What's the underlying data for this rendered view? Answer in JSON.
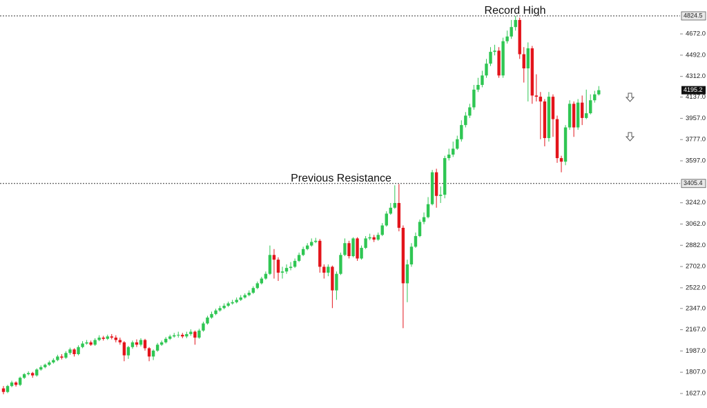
{
  "chart_data": {
    "type": "candlestick",
    "up_color": "#2fc653",
    "down_color": "#e3141b",
    "ylim": [
      1504,
      4959
    ],
    "yticks": [
      {
        "value": 1627,
        "label": "1627.0"
      },
      {
        "value": 1807,
        "label": "1807.0"
      },
      {
        "value": 1987,
        "label": "1987.0"
      },
      {
        "value": 2167,
        "label": "2167.0"
      },
      {
        "value": 2347,
        "label": "2347.0"
      },
      {
        "value": 2522,
        "label": "2522.0"
      },
      {
        "value": 2702,
        "label": "2702.0"
      },
      {
        "value": 2882,
        "label": "2882.0"
      },
      {
        "value": 3062,
        "label": "3062.0"
      },
      {
        "value": 3242,
        "label": "3242.0"
      },
      {
        "value": 3597,
        "label": "3597.0"
      },
      {
        "value": 3777,
        "label": "3777.0"
      },
      {
        "value": 3957,
        "label": "3957.0"
      },
      {
        "value": 4137,
        "label": "4137.0"
      },
      {
        "value": 4312,
        "label": "4312.0"
      },
      {
        "value": 4492,
        "label": "4492.0"
      },
      {
        "value": 4672,
        "label": "4672.0"
      }
    ],
    "hlines": [
      {
        "value": 4824.5,
        "text": "Record High"
      },
      {
        "value": 3405.4,
        "text": "Previous Resistance"
      }
    ],
    "open": [
      1670,
      1640,
      1690,
      1720,
      1700,
      1760,
      1790,
      1800,
      1780,
      1830,
      1850,
      1870,
      1890,
      1910,
      1940,
      1930,
      1970,
      2000,
      1960,
      2020,
      2050,
      2060,
      2040,
      2080,
      2100,
      2090,
      2110,
      2100,
      2080,
      2060,
      1950,
      2020,
      2060,
      2040,
      2080,
      2010,
      1940,
      1990,
      2040,
      2060,
      2090,
      2110,
      2120,
      2124,
      2110,
      2130,
      2150,
      2100,
      2160,
      2220,
      2270,
      2300,
      2330,
      2350,
      2370,
      2390,
      2400,
      2420,
      2440,
      2460,
      2480,
      2520,
      2560,
      2600,
      2640,
      2800,
      2760,
      2650,
      2660,
      2690,
      2700,
      2750,
      2800,
      2850,
      2880,
      2910,
      2920,
      2700,
      2650,
      2700,
      2500,
      2640,
      2800,
      2900,
      2790,
      2940,
      2770,
      2860,
      2940,
      2950,
      2930,
      2970,
      3050,
      3150,
      3200,
      3240,
      3030,
      2560,
      2720,
      2870,
      2960,
      3080,
      3120,
      3230,
      3500,
      3300,
      3310,
      3620,
      3650,
      3700,
      3780,
      3900,
      3980,
      4050,
      4200,
      4240,
      4320,
      4420,
      4520,
      4530,
      4320,
      4610,
      4650,
      4730,
      4790,
      4500,
      4380,
      4550,
      4150,
      4140,
      4100,
      3790,
      4140,
      3950,
      3620,
      3590,
      3880,
      4080,
      3880,
      4090,
      3960,
      4000,
      4110,
      4160
    ],
    "high": [
      1690,
      1700,
      1735,
      1730,
      1770,
      1800,
      1815,
      1810,
      1840,
      1865,
      1880,
      1905,
      1925,
      1955,
      1960,
      1985,
      2015,
      2010,
      2035,
      2070,
      2080,
      2075,
      2095,
      2120,
      2115,
      2125,
      2130,
      2120,
      2100,
      2070,
      2030,
      2075,
      2085,
      2095,
      2090,
      2020,
      2000,
      2055,
      2075,
      2105,
      2125,
      2140,
      2150,
      2140,
      2150,
      2170,
      2160,
      2175,
      2235,
      2285,
      2320,
      2345,
      2370,
      2390,
      2405,
      2420,
      2440,
      2460,
      2475,
      2500,
      2535,
      2575,
      2615,
      2660,
      2880,
      2850,
      2780,
      2700,
      2720,
      2740,
      2770,
      2820,
      2870,
      2900,
      2940,
      2945,
      2935,
      2720,
      2720,
      2710,
      2660,
      2820,
      2940,
      2920,
      2950,
      2950,
      2880,
      2960,
      2980,
      2970,
      2990,
      3070,
      3170,
      3240,
      3390,
      3400,
      3050,
      2760,
      2900,
      2990,
      3100,
      3160,
      3290,
      3520,
      3530,
      3380,
      3640,
      3700,
      3760,
      3810,
      3940,
      4010,
      4080,
      4240,
      4300,
      4360,
      4460,
      4560,
      4580,
      4560,
      4640,
      4700,
      4790,
      4824.5,
      4810,
      4560,
      4600,
      4570,
      4330,
      4180,
      4120,
      4180,
      4160,
      3980,
      3640,
      3900,
      4110,
      4100,
      4120,
      4150,
      4200,
      4160,
      4190,
      4230
    ],
    "low": [
      1620,
      1630,
      1680,
      1685,
      1690,
      1750,
      1780,
      1760,
      1770,
      1820,
      1840,
      1860,
      1880,
      1900,
      1915,
      1920,
      1955,
      1940,
      1950,
      2010,
      2040,
      2030,
      2030,
      2070,
      2075,
      2080,
      2085,
      2060,
      2040,
      1900,
      1920,
      2005,
      2020,
      2025,
      1990,
      1900,
      1910,
      1980,
      2030,
      2050,
      2080,
      2100,
      2100,
      2095,
      2095,
      2115,
      2040,
      2090,
      2150,
      2210,
      2260,
      2290,
      2320,
      2340,
      2360,
      2380,
      2390,
      2410,
      2430,
      2450,
      2470,
      2510,
      2550,
      2590,
      2630,
      2600,
      2580,
      2600,
      2640,
      2670,
      2690,
      2740,
      2790,
      2840,
      2870,
      2900,
      2650,
      2600,
      2620,
      2350,
      2420,
      2630,
      2790,
      2770,
      2780,
      2750,
      2760,
      2850,
      2925,
      2910,
      2920,
      2960,
      3040,
      3140,
      3190,
      3000,
      2180,
      2400,
      2700,
      2860,
      2950,
      3060,
      3110,
      3220,
      3200,
      3240,
      3280,
      3600,
      3630,
      3690,
      3760,
      3880,
      3960,
      4030,
      4180,
      4220,
      4300,
      4400,
      4490,
      4300,
      4300,
      4590,
      4630,
      4700,
      4460,
      4260,
      4100,
      4080,
      4100,
      3780,
      3720,
      3760,
      3800,
      3580,
      3500,
      3560,
      3860,
      3800,
      3860,
      3900,
      3950,
      3990,
      4090,
      4150
    ],
    "close": [
      1640,
      1690,
      1720,
      1700,
      1760,
      1790,
      1800,
      1780,
      1830,
      1850,
      1870,
      1890,
      1910,
      1940,
      1930,
      1970,
      2000,
      1960,
      2020,
      2050,
      2060,
      2040,
      2080,
      2100,
      2090,
      2110,
      2100,
      2080,
      2060,
      1950,
      2020,
      2060,
      2040,
      2080,
      2010,
      1940,
      1990,
      2040,
      2060,
      2090,
      2110,
      2120,
      2124,
      2110,
      2130,
      2150,
      2100,
      2160,
      2220,
      2270,
      2300,
      2330,
      2350,
      2370,
      2390,
      2400,
      2420,
      2440,
      2460,
      2480,
      2520,
      2560,
      2600,
      2640,
      2800,
      2760,
      2650,
      2660,
      2690,
      2700,
      2750,
      2800,
      2850,
      2880,
      2910,
      2920,
      2700,
      2650,
      2700,
      2500,
      2640,
      2800,
      2900,
      2790,
      2940,
      2770,
      2860,
      2940,
      2950,
      2930,
      2970,
      3050,
      3150,
      3200,
      3240,
      3030,
      2560,
      2720,
      2870,
      2960,
      3080,
      3120,
      3230,
      3500,
      3300,
      3310,
      3620,
      3650,
      3700,
      3780,
      3900,
      3980,
      4050,
      4200,
      4240,
      4320,
      4420,
      4520,
      4530,
      4320,
      4610,
      4650,
      4730,
      4790,
      4500,
      4380,
      4550,
      4150,
      4140,
      4100,
      3790,
      4140,
      3950,
      3620,
      3590,
      3880,
      4080,
      3880,
      4090,
      3960,
      4000,
      4110,
      4160,
      4195.2
    ]
  }
}
